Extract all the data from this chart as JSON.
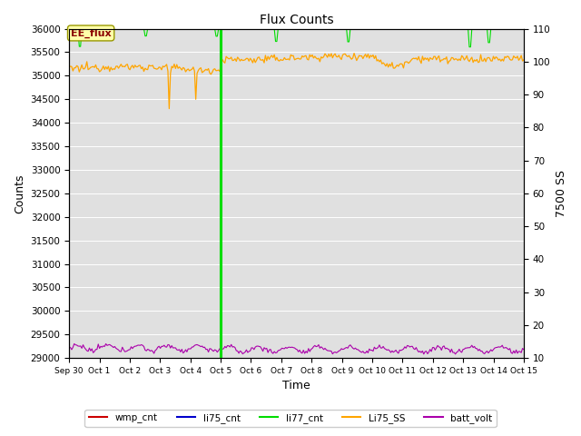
{
  "title": "Flux Counts",
  "xlabel": "Time",
  "ylabel_left": "Counts",
  "ylabel_right": "7500 SS",
  "ylim_left": [
    29000,
    36000
  ],
  "ylim_right": [
    10,
    110
  ],
  "yticks_left": [
    29000,
    29500,
    30000,
    30500,
    31000,
    31500,
    32000,
    32500,
    33000,
    33500,
    34000,
    34500,
    35000,
    35500,
    36000
  ],
  "yticks_right": [
    10,
    20,
    30,
    40,
    50,
    60,
    70,
    80,
    90,
    100,
    110
  ],
  "xticklabels": [
    "Sep 30",
    "Oct 1",
    "Oct 2",
    "Oct 3",
    "Oct 4",
    "Oct 5",
    "Oct 6",
    "Oct 7",
    "Oct 8",
    "Oct 9",
    "Oct 10",
    "Oct 11",
    "Oct 12",
    "Oct 13",
    "Oct 14",
    "Oct 15"
  ],
  "bg_color": "#e0e0e0",
  "annotation_text": "EE_flux",
  "annotation_color": "#8b0000",
  "annotation_bg": "#ffffaa",
  "green_line_color": "#00dd00",
  "orange_line_color": "#ffa500",
  "purple_line_color": "#aa00aa",
  "vline_color": "#00dd00",
  "legend_entries": [
    {
      "label": "wmp_cnt",
      "color": "#cc0000"
    },
    {
      "label": "li75_cnt",
      "color": "#0000cc"
    },
    {
      "label": "li77_cnt",
      "color": "#00dd00"
    },
    {
      "label": "Li75_SS",
      "color": "#ffa500"
    },
    {
      "label": "batt_volt",
      "color": "#aa00aa"
    }
  ]
}
